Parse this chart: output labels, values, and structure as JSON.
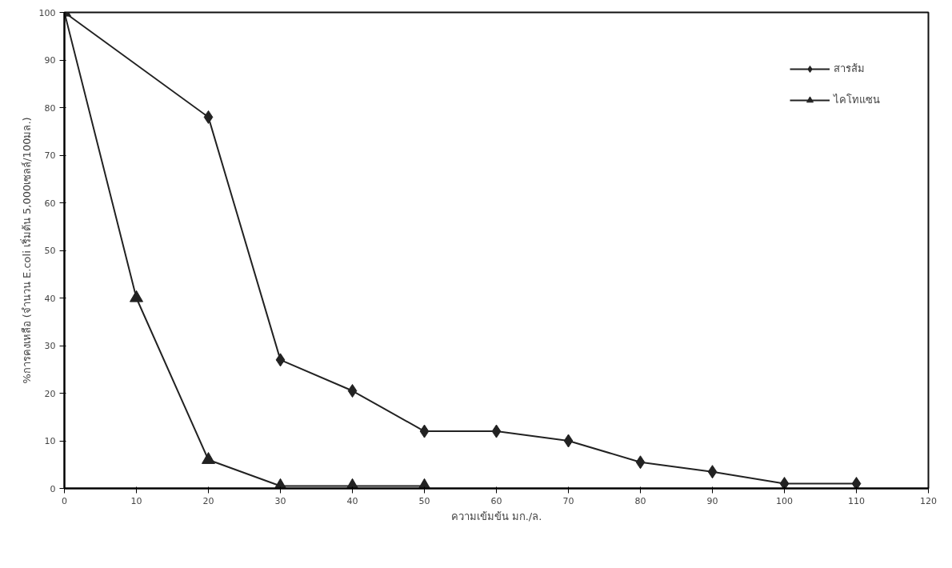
{
  "chart_data": {
    "type": "line",
    "xlabel": "ความเข้มข้น มก./ล.",
    "ylabel": "%การคงเหลือ (จำนวน E.coli เริ่มต้น 5,000เซลล์/100มล.)",
    "xlim": [
      0,
      120
    ],
    "ylim": [
      0,
      100
    ],
    "xticks": [
      0,
      10,
      20,
      30,
      40,
      50,
      60,
      70,
      80,
      90,
      100,
      110,
      120
    ],
    "yticks": [
      0,
      10,
      20,
      30,
      40,
      50,
      60,
      70,
      80,
      90,
      100
    ],
    "grid": false,
    "legend": "top right",
    "series": [
      {
        "name": "สารส้ม",
        "color": "#222222",
        "marker": "diamond",
        "x": [
          0,
          20,
          30,
          40,
          50,
          60,
          70,
          80,
          90,
          100,
          110
        ],
        "values": [
          100,
          78,
          27,
          20.5,
          12,
          12,
          10,
          5.5,
          3.5,
          1,
          1
        ]
      },
      {
        "name": "ไคโทแซน",
        "color": "#222222",
        "marker": "triangle",
        "x": [
          0,
          10,
          20,
          30,
          40,
          50
        ],
        "values": [
          100,
          40,
          6,
          0.5,
          0.5,
          0.5
        ]
      }
    ]
  }
}
